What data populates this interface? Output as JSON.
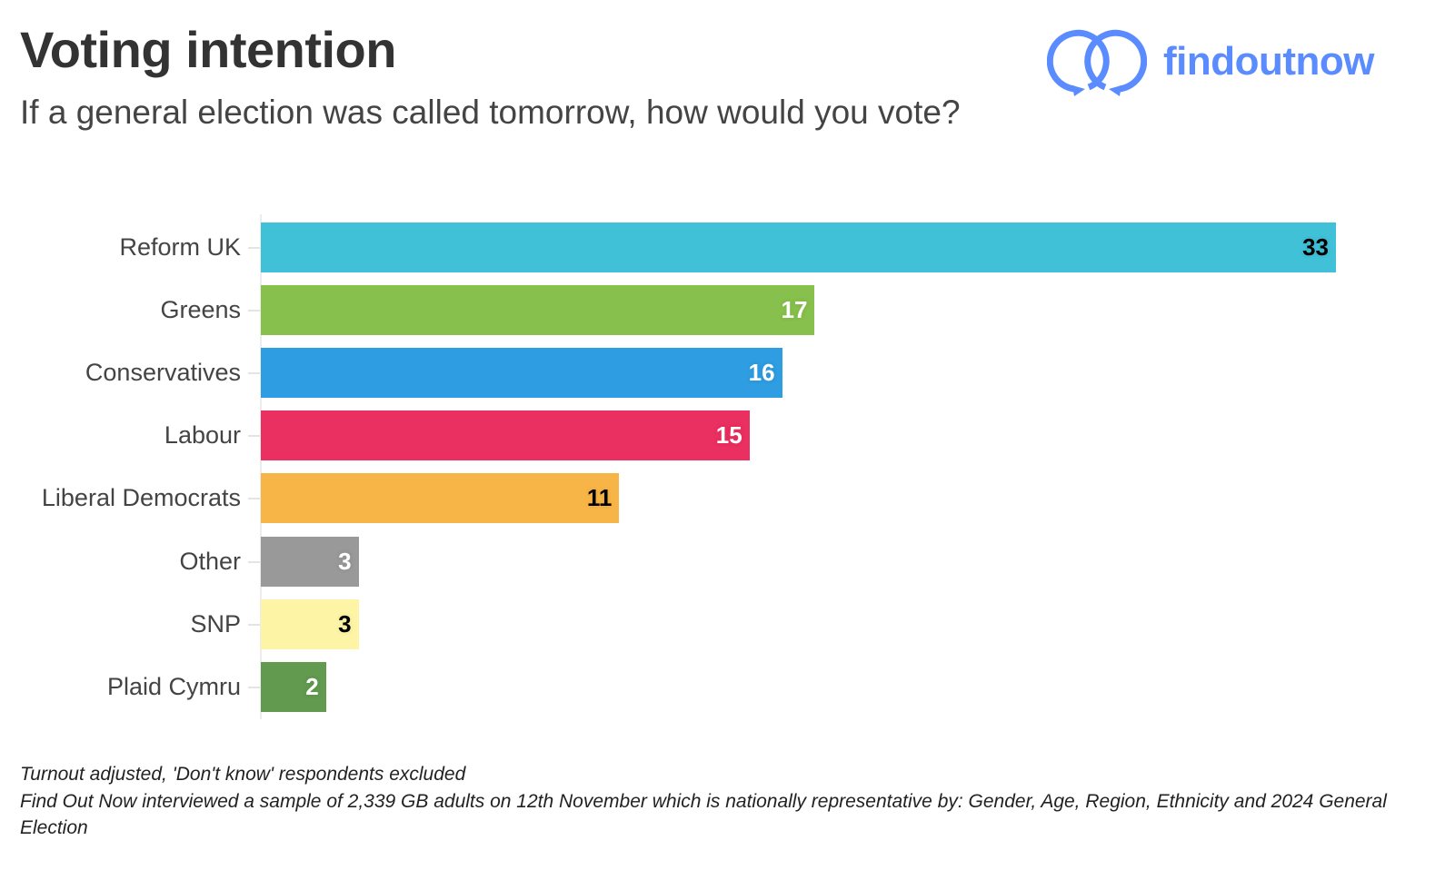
{
  "header": {
    "title": "Voting intention",
    "subtitle": "If a general election was called tomorrow, how would you vote?"
  },
  "logo": {
    "text": "findoutnow",
    "icon": "interlocking-speech-rings-icon",
    "color": "#5b8cff"
  },
  "chart_data": {
    "type": "bar",
    "orientation": "horizontal",
    "title": "Voting intention",
    "subtitle": "If a general election was called tomorrow, how would you vote?",
    "xlabel": "",
    "ylabel": "",
    "categories": [
      "Reform UK",
      "Greens",
      "Conservatives",
      "Labour",
      "Liberal Democrats",
      "Other",
      "SNP",
      "Plaid Cymru"
    ],
    "values": [
      33,
      17,
      16,
      15,
      11,
      3,
      3,
      2
    ],
    "colors": [
      "#40c1d8",
      "#87c04c",
      "#2f9de2",
      "#ea3060",
      "#f8b547",
      "#999999",
      "#fdf5a5",
      "#629a50"
    ],
    "label_colors": [
      "#000000",
      "#ffffff",
      "#ffffff",
      "#ffffff",
      "#000000",
      "#ffffff",
      "#000000",
      "#ffffff"
    ],
    "xlim": [
      0,
      33
    ],
    "grid": false,
    "legend": "none",
    "data_labels": true
  },
  "notes": {
    "line1": "Turnout adjusted, 'Don't know' respondents excluded",
    "line2": "Find Out Now interviewed a sample of 2,339 GB adults on 12th November which is nationally representative by: Gender, Age, Region, Ethnicity and 2024 General Election"
  }
}
